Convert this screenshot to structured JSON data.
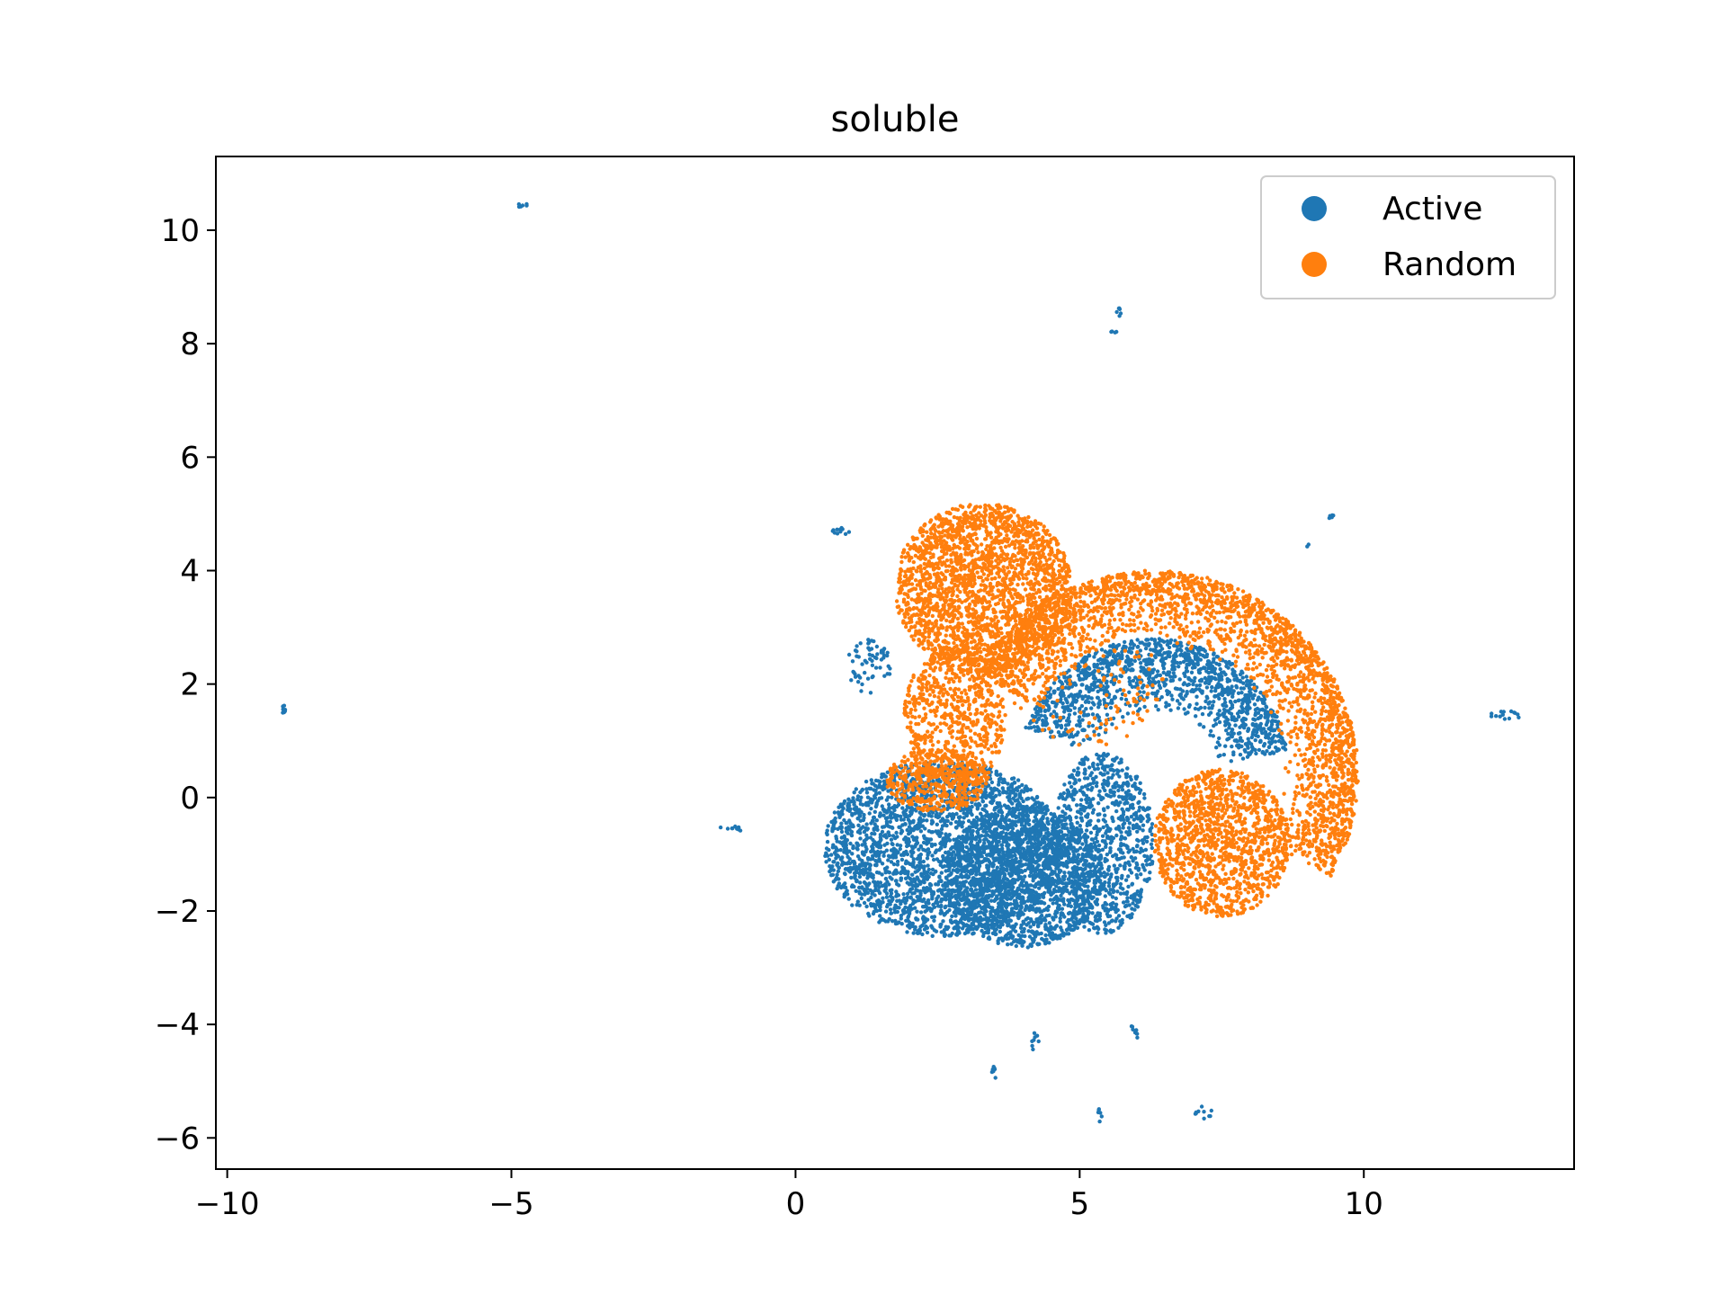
{
  "chart_data": {
    "type": "scatter",
    "title": "soluble",
    "xlabel": "",
    "ylabel": "",
    "xlim": [
      -10.2,
      13.7
    ],
    "ylim": [
      -6.55,
      11.3
    ],
    "xticks": [
      -10,
      -5,
      0,
      5,
      10
    ],
    "xtick_labels": [
      "−10",
      "−5",
      "0",
      "5",
      "10"
    ],
    "yticks": [
      -6,
      -4,
      -2,
      0,
      2,
      4,
      6,
      8,
      10
    ],
    "ytick_labels": [
      "−6",
      "−4",
      "−2",
      "0",
      "2",
      "4",
      "6",
      "8",
      "10"
    ],
    "grid": false,
    "legend_position": "top-right",
    "series": [
      {
        "name": "Active",
        "color": "#1f77b4",
        "clusters": [
          {
            "shape": "ellipse",
            "cx": 2.6,
            "cy": -0.9,
            "rx": 2.1,
            "ry": 1.55,
            "n": 2600
          },
          {
            "shape": "ellipse",
            "cx": 4.0,
            "cy": -1.4,
            "rx": 1.4,
            "ry": 1.25,
            "n": 1500
          },
          {
            "shape": "ellipse",
            "cx": 5.4,
            "cy": -0.8,
            "rx": 0.9,
            "ry": 1.6,
            "n": 900
          },
          {
            "shape": "arc",
            "cx": 6.3,
            "cy": 0.4,
            "r_inner": 1.1,
            "r_outer": 2.4,
            "deg_from": 10,
            "deg_to": 160,
            "n": 1300
          },
          {
            "shape": "ellipse",
            "cx": 1.3,
            "cy": 2.3,
            "rx": 0.4,
            "ry": 0.5,
            "n": 60
          },
          {
            "shape": "ellipse",
            "cx": -9.0,
            "cy": 1.55,
            "rx": 0.1,
            "ry": 0.08,
            "n": 8
          },
          {
            "shape": "ellipse",
            "cx": -4.8,
            "cy": 10.45,
            "rx": 0.1,
            "ry": 0.05,
            "n": 6
          },
          {
            "shape": "ellipse",
            "cx": 5.7,
            "cy": 8.55,
            "rx": 0.05,
            "ry": 0.08,
            "n": 6
          },
          {
            "shape": "ellipse",
            "cx": 5.6,
            "cy": 8.2,
            "rx": 0.05,
            "ry": 0.03,
            "n": 4
          },
          {
            "shape": "ellipse",
            "cx": 0.8,
            "cy": 4.7,
            "rx": 0.15,
            "ry": 0.08,
            "n": 12
          },
          {
            "shape": "ellipse",
            "cx": 9.4,
            "cy": 4.95,
            "rx": 0.08,
            "ry": 0.05,
            "n": 6
          },
          {
            "shape": "ellipse",
            "cx": 9.0,
            "cy": 4.45,
            "rx": 0.03,
            "ry": 0.03,
            "n": 2
          },
          {
            "shape": "ellipse",
            "cx": 12.5,
            "cy": 1.45,
            "rx": 0.3,
            "ry": 0.08,
            "n": 14
          },
          {
            "shape": "ellipse",
            "cx": -1.1,
            "cy": -0.55,
            "rx": 0.25,
            "ry": 0.05,
            "n": 10
          },
          {
            "shape": "ellipse",
            "cx": 3.5,
            "cy": -4.85,
            "rx": 0.05,
            "ry": 0.15,
            "n": 8
          },
          {
            "shape": "ellipse",
            "cx": 4.2,
            "cy": -4.3,
            "rx": 0.1,
            "ry": 0.2,
            "n": 8
          },
          {
            "shape": "ellipse",
            "cx": 5.95,
            "cy": -4.15,
            "rx": 0.08,
            "ry": 0.15,
            "n": 8
          },
          {
            "shape": "ellipse",
            "cx": 5.35,
            "cy": -5.6,
            "rx": 0.04,
            "ry": 0.12,
            "n": 6
          },
          {
            "shape": "ellipse",
            "cx": 7.2,
            "cy": -5.55,
            "rx": 0.2,
            "ry": 0.12,
            "n": 10
          }
        ]
      },
      {
        "name": "Random",
        "color": "#ff7f0e",
        "clusters": [
          {
            "shape": "ellipse",
            "cx": 3.3,
            "cy": 3.7,
            "rx": 1.55,
            "ry": 1.5,
            "n": 2200
          },
          {
            "shape": "ellipse",
            "cx": 2.8,
            "cy": 1.4,
            "rx": 0.9,
            "ry": 1.3,
            "n": 700
          },
          {
            "shape": "ellipse",
            "cx": 2.5,
            "cy": 0.3,
            "rx": 0.9,
            "ry": 0.55,
            "n": 400
          },
          {
            "shape": "arc",
            "cx": 6.3,
            "cy": 0.4,
            "r_inner": 2.3,
            "r_outer": 3.6,
            "deg_from": -30,
            "deg_to": 150,
            "n": 2600
          },
          {
            "shape": "ellipse",
            "cx": 7.5,
            "cy": -0.8,
            "rx": 1.2,
            "ry": 1.3,
            "n": 1300
          },
          {
            "shape": "ellipse",
            "cx": 5.3,
            "cy": 1.8,
            "rx": 1.6,
            "ry": 0.9,
            "n": 120
          }
        ]
      }
    ]
  }
}
